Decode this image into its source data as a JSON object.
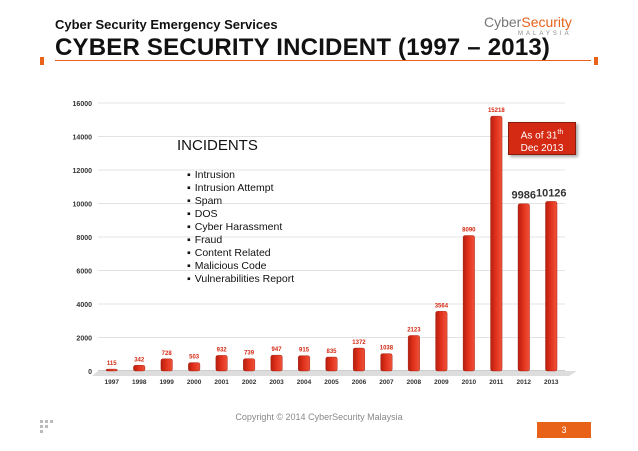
{
  "header": {
    "subtitle": "Cyber Security Emergency Services",
    "title": "CYBER SECURITY INCIDENT (1997 – 2013)"
  },
  "logo": {
    "name_part1": "Cyber",
    "name_part2": "Security",
    "tagline": "MALAYSIA"
  },
  "legend": {
    "title": "INCIDENTS",
    "items": [
      "Intrusion",
      "Intrusion Attempt",
      "Spam",
      "DOS",
      "Cyber Harassment",
      "Fraud",
      "Content Related",
      "Malicious Code",
      "Vulnerabilities  Report"
    ]
  },
  "asof": {
    "line1": "As of 31",
    "sup": "th",
    "line2": "Dec 2013"
  },
  "footer": {
    "copyright": "Copyright © 2014 CyberSecurity Malaysia",
    "page": "3"
  },
  "colors": {
    "bar": "#e0311c",
    "accent": "#e8621a",
    "asof_box": "#d42a14"
  },
  "chart_data": {
    "type": "bar",
    "categories": [
      "1997",
      "1998",
      "1999",
      "2000",
      "2001",
      "2002",
      "2003",
      "2004",
      "2005",
      "2006",
      "2007",
      "2008",
      "2009",
      "2010",
      "2011",
      "2012",
      "2013"
    ],
    "values": [
      115,
      342,
      728,
      503,
      932,
      739,
      947,
      915,
      835,
      1372,
      1038,
      2123,
      3564,
      8090,
      15218,
      9986,
      10126
    ],
    "ylim": [
      0,
      16000
    ],
    "yticks": [
      0,
      2000,
      4000,
      6000,
      8000,
      10000,
      12000,
      14000,
      16000
    ],
    "grid": true,
    "title": "",
    "xlabel": "",
    "ylabel": ""
  }
}
